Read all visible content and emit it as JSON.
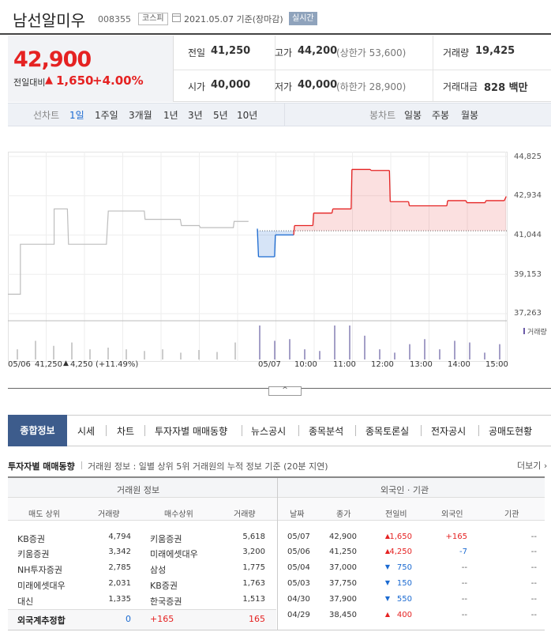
{
  "header": {
    "name": "남선알미우",
    "code": "008355",
    "market": "코스피",
    "base_date": "2021.05.07 기준(장마감)",
    "realtime": "실시간"
  },
  "price": {
    "current": "42,900",
    "compare_label": "전일대비",
    "change": "1,650",
    "change_pct": "+4.00%"
  },
  "quote": {
    "prev_label": "전일",
    "prev": "41,250",
    "high_label": "고가",
    "high": "44,200",
    "upper_limit": "(상한가 53,600)",
    "volume_label": "거래량",
    "volume": "19,425",
    "open_label": "시가",
    "open": "40,000",
    "low_label": "저가",
    "low": "40,000",
    "lower_limit": "(하한가 28,900)",
    "amount_label": "거래대금",
    "amount": "828 백만"
  },
  "chart_tabs": {
    "line_label": "선차트",
    "periods": [
      "1일",
      "1주일",
      "3개월",
      "1년",
      "3년",
      "5년",
      "10년"
    ],
    "candle_label": "봉차트",
    "candles": [
      "일봉",
      "주봉",
      "월봉"
    ]
  },
  "chart_data": {
    "type": "line",
    "y_ticks": [
      "44,825",
      "42,934",
      "41,044",
      "39,153",
      "37,263"
    ],
    "ylim": [
      37263,
      44825
    ],
    "baseline": 41250,
    "legend": "거래량",
    "x_labels": [
      "05/06",
      "05/07",
      "10:00",
      "11:00",
      "12:00",
      "13:00",
      "14:00",
      "15:00"
    ],
    "prev_day_label": "05/06",
    "prev_day_close": "41,250",
    "prev_day_change": "4,250",
    "prev_day_pct": "(+11.49%)",
    "prev_day_series": [
      {
        "t": 0,
        "v": 38200
      },
      {
        "t": 0.33,
        "v": 38200
      },
      {
        "t": 0.33,
        "v": 40600
      },
      {
        "t": 1.22,
        "v": 40600
      },
      {
        "t": 1.22,
        "v": 42300
      },
      {
        "t": 1.57,
        "v": 42300
      },
      {
        "t": 1.6,
        "v": 40600
      },
      {
        "t": 2.6,
        "v": 40600
      },
      {
        "t": 2.65,
        "v": 42200
      },
      {
        "t": 3.6,
        "v": 42200
      },
      {
        "t": 3.62,
        "v": 41800
      },
      {
        "t": 4.55,
        "v": 41800
      },
      {
        "t": 4.58,
        "v": 41500
      },
      {
        "t": 5.05,
        "v": 41500
      },
      {
        "t": 5.08,
        "v": 41400
      },
      {
        "t": 5.95,
        "v": 41400
      },
      {
        "t": 5.97,
        "v": 41700
      },
      {
        "t": 6.35,
        "v": 41700
      }
    ],
    "today_series": [
      {
        "t": 0,
        "v": 41350
      },
      {
        "t": 0.03,
        "v": 40000
      },
      {
        "t": 0.45,
        "v": 40000
      },
      {
        "t": 0.47,
        "v": 41050
      },
      {
        "t": 0.95,
        "v": 41050
      },
      {
        "t": 0.97,
        "v": 41500
      },
      {
        "t": 1.45,
        "v": 41500
      },
      {
        "t": 1.47,
        "v": 42100
      },
      {
        "t": 1.95,
        "v": 42100
      },
      {
        "t": 1.97,
        "v": 42300
      },
      {
        "t": 2.45,
        "v": 42300
      },
      {
        "t": 2.47,
        "v": 44200
      },
      {
        "t": 2.95,
        "v": 44200
      },
      {
        "t": 2.97,
        "v": 44150
      },
      {
        "t": 3.45,
        "v": 44150
      },
      {
        "t": 3.47,
        "v": 42650
      },
      {
        "t": 3.95,
        "v": 42650
      },
      {
        "t": 3.97,
        "v": 42450
      },
      {
        "t": 4.95,
        "v": 42450
      },
      {
        "t": 4.97,
        "v": 42700
      },
      {
        "t": 5.45,
        "v": 42700
      },
      {
        "t": 5.47,
        "v": 42600
      },
      {
        "t": 5.95,
        "v": 42600
      },
      {
        "t": 5.97,
        "v": 42700
      },
      {
        "t": 6.45,
        "v": 42700
      },
      {
        "t": 6.5,
        "v": 42900
      }
    ],
    "volume_prev": [
      0.3,
      0.55,
      0.4,
      0.5,
      0.3,
      0.35,
      0.3,
      0.25,
      0.3,
      0.2,
      0.28,
      0.22,
      0.5
    ],
    "volume_today": [
      1.0,
      0.55,
      0.6,
      0.3,
      0.25,
      1.0,
      1.0,
      0.7,
      0.3,
      0.2,
      0.45,
      0.6,
      0.3,
      0.55,
      0.5,
      0.2,
      0.45
    ]
  },
  "collapse_label": "^",
  "main_tabs": [
    "종합정보",
    "시세",
    "차트",
    "투자자별 매매동향",
    "뉴스공시",
    "종목분석",
    "종목토론실",
    "전자공시",
    "공매도현황"
  ],
  "investor": {
    "title": "투자자별 매매동향",
    "desc": "거래원 정보 : 일별 상위 5위 거래원의 누적 정보 기준 (20분 지연)",
    "more": "더보기",
    "broker_header": "거래원 정보",
    "foreign_header": "외국인 · 기관",
    "broker_cols": [
      "매도 상위",
      "거래량",
      "매수상위",
      "거래량"
    ],
    "foreign_cols": [
      "날짜",
      "종가",
      "전일비",
      "외국인",
      "기관"
    ],
    "broker_rows": [
      [
        "KB증권",
        "4,794",
        "키움증권",
        "5,618"
      ],
      [
        "키움증권",
        "3,342",
        "미래에셋대우",
        "3,200"
      ],
      [
        "NH투자증권",
        "2,785",
        "삼성",
        "1,775"
      ],
      [
        "미래에셋대우",
        "2,031",
        "KB증권",
        "1,763"
      ],
      [
        "대신",
        "1,335",
        "한국증권",
        "1,513"
      ]
    ],
    "foreign_total": [
      "외국계추정합",
      "0",
      "+165",
      "165"
    ],
    "foreign_rows": [
      {
        "date": "05/07",
        "close": "42,900",
        "dir": "up",
        "diff": "1,650",
        "foreign": "+165",
        "inst": "--"
      },
      {
        "date": "05/06",
        "close": "41,250",
        "dir": "up",
        "diff": "4,250",
        "foreign": "-7",
        "inst": "--"
      },
      {
        "date": "05/04",
        "close": "37,000",
        "dir": "down",
        "diff": "750",
        "foreign": "--",
        "inst": "--"
      },
      {
        "date": "05/03",
        "close": "37,750",
        "dir": "down",
        "diff": "150",
        "foreign": "--",
        "inst": "--"
      },
      {
        "date": "04/30",
        "close": "37,900",
        "dir": "down",
        "diff": "550",
        "foreign": "--",
        "inst": "--"
      },
      {
        "date": "04/29",
        "close": "38,450",
        "dir": "up",
        "diff": "400",
        "foreign": "--",
        "inst": "--"
      }
    ]
  }
}
